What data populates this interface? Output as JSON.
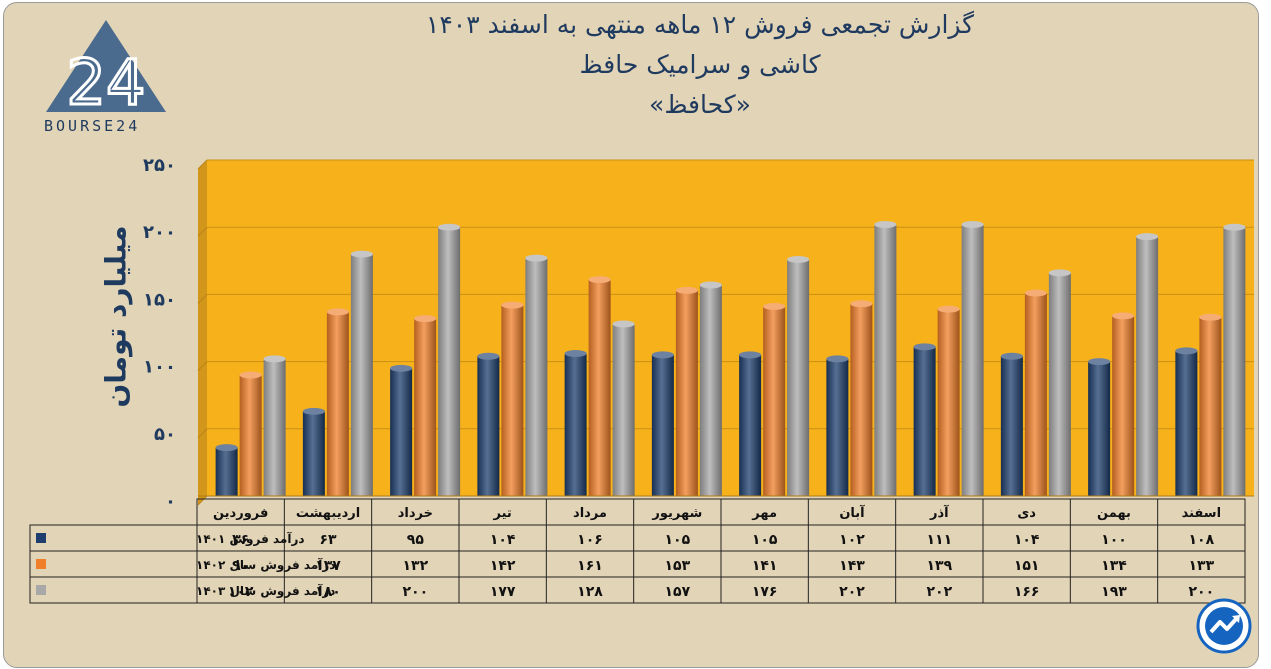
{
  "header": {
    "title_line1": "گزارش تجمعی فروش ۱۲ ماهه منتهی به اسفند ۱۴۰۳",
    "title_line2": "کاشی و سرامیک حافظ",
    "title_line3": "«کحافظ»"
  },
  "logo": {
    "text": "BOURSE24",
    "mark": "24",
    "colors": {
      "triangle": "#4a6a8e"
    }
  },
  "corner_icon": {
    "name": "trend-chart-icon",
    "color": "#1565c0"
  },
  "chart_data": {
    "type": "bar",
    "ylabel": "میلیارد تومان",
    "ylim": [
      0,
      250
    ],
    "yticks": [
      0,
      50,
      100,
      150,
      200,
      250
    ],
    "ytick_labels": [
      "۰",
      "۵۰",
      "۱۰۰",
      "۱۵۰",
      "۲۰۰",
      "۲۵۰"
    ],
    "grid": true,
    "plot_background": "#f7b21b",
    "categories": [
      "فروردین",
      "اردیبهشت",
      "خرداد",
      "تیر",
      "مرداد",
      "شهریور",
      "مهر",
      "آبان",
      "آذر",
      "دی",
      "بهمن",
      "اسفند"
    ],
    "series": [
      {
        "name": "درآمد فروش ۱۴۰۱",
        "color": "#1e3f6e",
        "values": [
          36,
          63,
          95,
          104,
          106,
          105,
          105,
          102,
          111,
          104,
          100,
          108
        ],
        "labels": [
          "۳۶",
          "۶۳",
          "۹۵",
          "۱۰۴",
          "۱۰۶",
          "۱۰۵",
          "۱۰۵",
          "۱۰۲",
          "۱۱۱",
          "۱۰۴",
          "۱۰۰",
          "۱۰۸"
        ]
      },
      {
        "name": "درآمد فروش سال ۱۴۰۲",
        "color": "#f07f2a",
        "values": [
          90,
          137,
          132,
          142,
          161,
          153,
          141,
          143,
          139,
          151,
          134,
          133
        ],
        "labels": [
          "۹۰",
          "۱۳۷",
          "۱۳۲",
          "۱۴۲",
          "۱۶۱",
          "۱۵۳",
          "۱۴۱",
          "۱۴۳",
          "۱۳۹",
          "۱۵۱",
          "۱۳۴",
          "۱۳۳"
        ]
      },
      {
        "name": "درآمد فروش سال ۱۴۰۳",
        "color": "#a8a8a8",
        "values": [
          102,
          180,
          200,
          177,
          128,
          157,
          176,
          202,
          202,
          166,
          193,
          200
        ],
        "labels": [
          "۱۰۲",
          "۱۸۰",
          "۲۰۰",
          "۱۷۷",
          "۱۲۸",
          "۱۵۷",
          "۱۷۶",
          "۲۰۲",
          "۲۰۲",
          "۱۶۶",
          "۱۹۳",
          "۲۰۰"
        ]
      }
    ]
  }
}
